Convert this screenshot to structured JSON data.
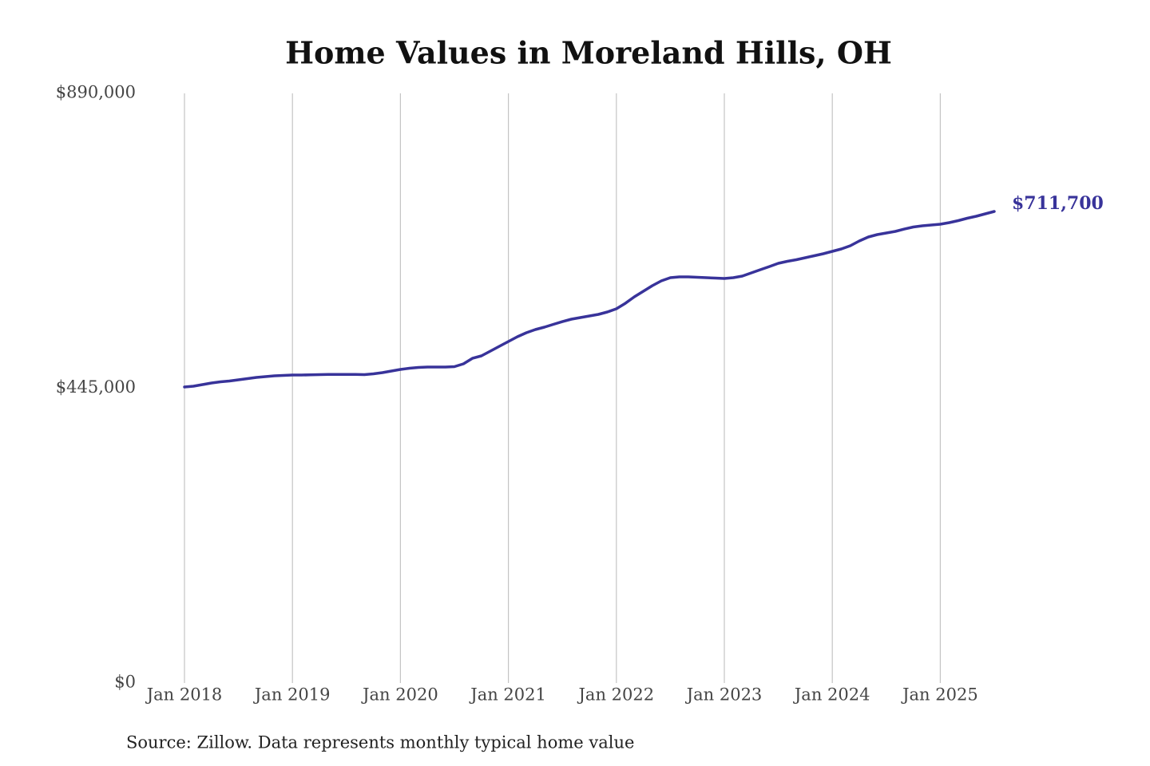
{
  "chart_data": {
    "type": "line",
    "title": "Home Values in Moreland Hills, OH",
    "source": "Source: Zillow. Data represents monthly typical home value",
    "x": [
      "2018-01",
      "2018-02",
      "2018-03",
      "2018-04",
      "2018-05",
      "2018-06",
      "2018-07",
      "2018-08",
      "2018-09",
      "2018-10",
      "2018-11",
      "2018-12",
      "2019-01",
      "2019-02",
      "2019-03",
      "2019-04",
      "2019-05",
      "2019-06",
      "2019-07",
      "2019-08",
      "2019-09",
      "2019-10",
      "2019-11",
      "2019-12",
      "2020-01",
      "2020-02",
      "2020-03",
      "2020-04",
      "2020-05",
      "2020-06",
      "2020-07",
      "2020-08",
      "2020-09",
      "2020-10",
      "2020-11",
      "2020-12",
      "2021-01",
      "2021-02",
      "2021-03",
      "2021-04",
      "2021-05",
      "2021-06",
      "2021-07",
      "2021-08",
      "2021-09",
      "2021-10",
      "2021-11",
      "2021-12",
      "2022-01",
      "2022-02",
      "2022-03",
      "2022-04",
      "2022-05",
      "2022-06",
      "2022-07",
      "2022-08",
      "2022-09",
      "2022-10",
      "2022-11",
      "2022-12",
      "2023-01",
      "2023-02",
      "2023-03",
      "2023-04",
      "2023-05",
      "2023-06",
      "2023-07",
      "2023-08",
      "2023-09",
      "2023-10",
      "2023-11",
      "2023-12",
      "2024-01",
      "2024-02",
      "2024-03",
      "2024-04",
      "2024-05",
      "2024-06",
      "2024-07",
      "2024-08",
      "2024-09",
      "2024-10",
      "2024-11",
      "2024-12",
      "2025-01",
      "2025-02",
      "2025-03",
      "2025-04",
      "2025-05",
      "2025-06",
      "2025-07"
    ],
    "series": [
      {
        "name": "Home value",
        "color": "#38339a",
        "values": [
          446800,
          448000,
          450400,
          452800,
          454600,
          455800,
          457600,
          459400,
          461200,
          462500,
          463700,
          464300,
          464900,
          464900,
          465100,
          465500,
          465700,
          465800,
          465800,
          465700,
          465500,
          466700,
          468500,
          470900,
          473300,
          475100,
          476300,
          476900,
          476900,
          476900,
          477500,
          481700,
          490100,
          493800,
          501000,
          508200,
          515400,
          522700,
          528700,
          533500,
          537100,
          541300,
          545500,
          549200,
          551600,
          554000,
          556400,
          560000,
          564800,
          573200,
          582900,
          591300,
          599700,
          607000,
          611800,
          613000,
          613000,
          612400,
          611800,
          611200,
          610600,
          611800,
          614200,
          619000,
          623800,
          628600,
          633500,
          636500,
          638900,
          641900,
          644900,
          647900,
          651500,
          655100,
          660000,
          667200,
          673200,
          676800,
          679200,
          681600,
          685200,
          688300,
          690100,
          691300,
          692500,
          694900,
          697900,
          701500,
          704500,
          708100,
          711700
        ],
        "value_labels": [
          null,
          null,
          null,
          null,
          null,
          null,
          null,
          null,
          null,
          null,
          null,
          null,
          null,
          null,
          null,
          null,
          null,
          null,
          null,
          null,
          null,
          null,
          null,
          null,
          null,
          null,
          null,
          null,
          null,
          null,
          null,
          null,
          null,
          null,
          null,
          null,
          null,
          null,
          null,
          null,
          null,
          null,
          null,
          null,
          null,
          null,
          null,
          null,
          null,
          null,
          null,
          null,
          null,
          null,
          null,
          null,
          null,
          null,
          null,
          null,
          null,
          null,
          null,
          null,
          null,
          null,
          null,
          null,
          null,
          null,
          null,
          null,
          null,
          null,
          null,
          null,
          null,
          null,
          null,
          null,
          null,
          null,
          null,
          null,
          null,
          null,
          null,
          null,
          null,
          null,
          "$711,700"
        ]
      }
    ],
    "xlim": [
      "2018-01",
      "2025-07"
    ],
    "xticks": [
      {
        "value": "2018-01",
        "label": "Jan 2018"
      },
      {
        "value": "2019-01",
        "label": "Jan 2019"
      },
      {
        "value": "2020-01",
        "label": "Jan 2020"
      },
      {
        "value": "2021-01",
        "label": "Jan 2021"
      },
      {
        "value": "2022-01",
        "label": "Jan 2022"
      },
      {
        "value": "2023-01",
        "label": "Jan 2023"
      },
      {
        "value": "2024-01",
        "label": "Jan 2024"
      },
      {
        "value": "2025-01",
        "label": "Jan 2025"
      }
    ],
    "ylim": [
      0,
      890000
    ],
    "yticks": [
      {
        "value": 0,
        "label": "$0"
      },
      {
        "value": 445000,
        "label": "$445,000"
      },
      {
        "value": 890000,
        "label": "$890,000"
      }
    ],
    "grid": "x"
  }
}
